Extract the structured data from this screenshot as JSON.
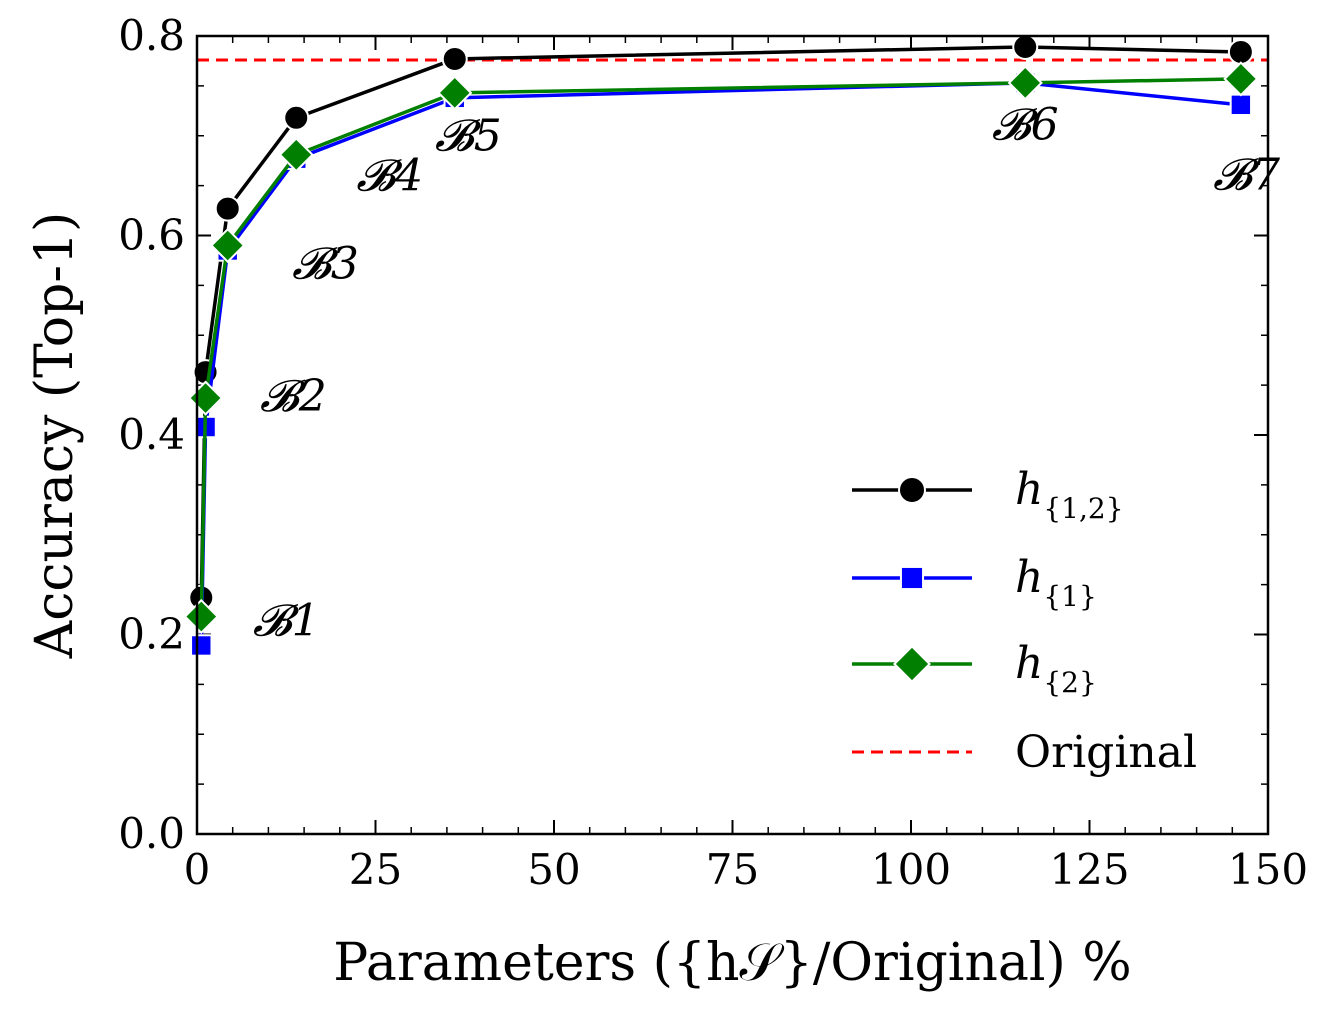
{
  "chart_data": {
    "type": "line",
    "xlabel": "Parameters ({h𝒮}/Original) %",
    "ylabel": "Accuracy (Top-1)",
    "xlim": [
      0,
      150
    ],
    "ylim": [
      0.0,
      0.8
    ],
    "xticks": [
      0,
      25,
      50,
      75,
      100,
      125,
      150
    ],
    "xtick_labels": [
      "0",
      "25",
      "50",
      "75",
      "100",
      "125",
      "150"
    ],
    "yticks": [
      0.0,
      0.2,
      0.4,
      0.6,
      0.8
    ],
    "ytick_labels": [
      "0.0",
      "0.2",
      "0.4",
      "0.6",
      "0.8"
    ],
    "grid": false,
    "legend_position": "bottom-right",
    "series": [
      {
        "name": "h{1,2}",
        "name_base": "h",
        "name_sub": "{1,2}",
        "color": "#000000",
        "marker": "circle",
        "x": [
          0.6,
          1.2,
          4.3,
          13.9,
          36.1,
          116.0,
          146.2
        ],
        "y": [
          0.237,
          0.463,
          0.627,
          0.718,
          0.777,
          0.789,
          0.784
        ]
      },
      {
        "name": "h{1}",
        "name_base": "h",
        "name_sub": "{1}",
        "color": "#0000ff",
        "marker": "square",
        "x": [
          0.6,
          1.2,
          4.3,
          13.9,
          36.1,
          116.0,
          146.2
        ],
        "y": [
          0.189,
          0.408,
          0.585,
          0.677,
          0.738,
          0.753,
          0.731
        ]
      },
      {
        "name": "h{2}",
        "name_base": "h",
        "name_sub": "{2}",
        "color": "#007f00",
        "marker": "diamond",
        "x": [
          0.6,
          1.2,
          4.3,
          13.9,
          36.1,
          116.0,
          146.2
        ],
        "y": [
          0.218,
          0.437,
          0.59,
          0.681,
          0.743,
          0.753,
          0.757
        ]
      }
    ],
    "reference_line": {
      "name": "Original",
      "color": "#ff0000",
      "y": 0.776,
      "style": "dashed"
    },
    "annotations": [
      {
        "text": "𝓑1",
        "x": 12.5,
        "y": 0.199
      },
      {
        "text": "𝓑2",
        "x": 13.5,
        "y": 0.424
      },
      {
        "text": "𝓑3",
        "x": 18.0,
        "y": 0.557
      },
      {
        "text": "𝓑4",
        "x": 27.0,
        "y": 0.645
      },
      {
        "text": "𝓑5",
        "x": 38.0,
        "y": 0.685
      },
      {
        "text": "𝓑6",
        "x": 116.0,
        "y": 0.696
      },
      {
        "text": "𝓑7",
        "x": 147.0,
        "y": 0.646
      }
    ]
  }
}
